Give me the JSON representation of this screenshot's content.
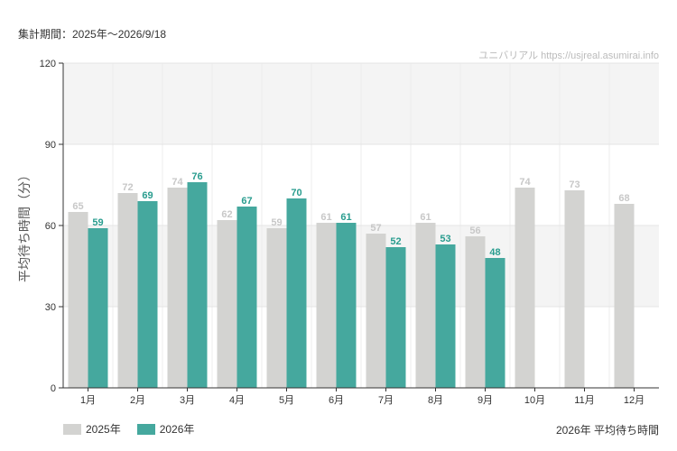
{
  "header": {
    "period": "集計期間：2025年～2026/9/18",
    "watermark": "ユニバリアル  https://usjreal.asumirai.info"
  },
  "footer": {
    "subtitle": "2026年 平均待ち時間"
  },
  "colors": {
    "series_2025": "#d3d3d1",
    "series_2026": "#45a89e",
    "band": "#f4f4f4",
    "label_2025": "#c8c8c8",
    "label_2026": "#2a9d8f"
  },
  "chart_data": {
    "type": "bar",
    "categories": [
      "1月",
      "2月",
      "3月",
      "4月",
      "5月",
      "6月",
      "7月",
      "8月",
      "9月",
      "10月",
      "11月",
      "12月"
    ],
    "series": [
      {
        "name": "2025年",
        "values": [
          65,
          72,
          74,
          62,
          59,
          61,
          57,
          61,
          56,
          74,
          73,
          68
        ]
      },
      {
        "name": "2026年",
        "values": [
          59,
          69,
          76,
          67,
          70,
          61,
          52,
          53,
          48,
          null,
          null,
          null
        ]
      }
    ],
    "ylabel": "平均待ち時間（分）",
    "xlabel": "",
    "ylim": [
      0,
      120
    ],
    "yticks": [
      0,
      30,
      60,
      90,
      120
    ],
    "legend": "bottom-left",
    "grid": true,
    "data_labels": true
  }
}
